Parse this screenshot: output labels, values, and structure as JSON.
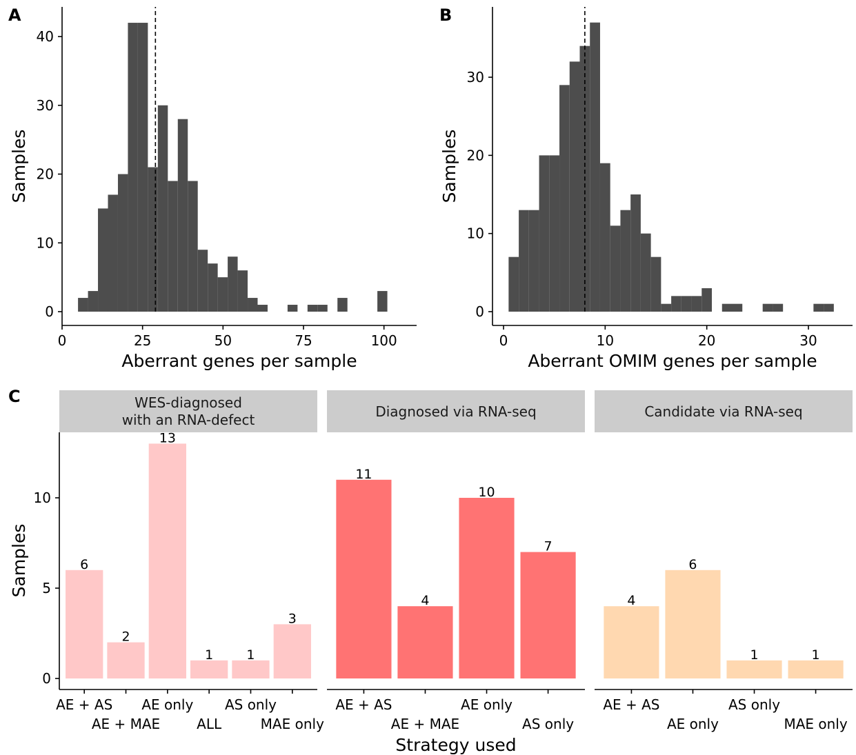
{
  "chart_data": [
    {
      "panel": "A",
      "type": "bar",
      "subtype": "histogram",
      "xlabel": "Aberrant genes per sample",
      "ylabel": "Samples",
      "xlim": [
        0,
        105
      ],
      "ylim": [
        0,
        44
      ],
      "xticks": [
        0,
        25,
        50,
        75,
        100
      ],
      "yticks": [
        0,
        10,
        20,
        30,
        40
      ],
      "bin_width": 3.1,
      "reference_line": {
        "x": 29,
        "style": "dashed"
      },
      "bins": [
        {
          "x": 6.5,
          "count": 2
        },
        {
          "x": 9.6,
          "count": 3
        },
        {
          "x": 12.7,
          "count": 15
        },
        {
          "x": 15.8,
          "count": 17
        },
        {
          "x": 18.9,
          "count": 20
        },
        {
          "x": 22.0,
          "count": 42
        },
        {
          "x": 25.1,
          "count": 42
        },
        {
          "x": 28.2,
          "count": 21
        },
        {
          "x": 31.3,
          "count": 30
        },
        {
          "x": 34.4,
          "count": 19
        },
        {
          "x": 37.5,
          "count": 28
        },
        {
          "x": 40.6,
          "count": 19
        },
        {
          "x": 43.7,
          "count": 9
        },
        {
          "x": 46.8,
          "count": 7
        },
        {
          "x": 49.9,
          "count": 5
        },
        {
          "x": 53.0,
          "count": 8
        },
        {
          "x": 56.1,
          "count": 6
        },
        {
          "x": 59.2,
          "count": 2
        },
        {
          "x": 62.3,
          "count": 1
        },
        {
          "x": 65.4,
          "count": 0
        },
        {
          "x": 71.6,
          "count": 1
        },
        {
          "x": 77.8,
          "count": 1
        },
        {
          "x": 80.9,
          "count": 1
        },
        {
          "x": 87.1,
          "count": 2
        },
        {
          "x": 99.5,
          "count": 3
        }
      ]
    },
    {
      "panel": "B",
      "type": "bar",
      "subtype": "histogram",
      "xlabel": "Aberrant OMIM genes per sample",
      "ylabel": "Samples",
      "xlim": [
        -1,
        33.5
      ],
      "ylim": [
        0,
        38
      ],
      "xticks": [
        0,
        10,
        20,
        30
      ],
      "yticks": [
        0,
        10,
        20,
        30
      ],
      "bin_width": 1,
      "reference_line": {
        "x": 8,
        "style": "dashed"
      },
      "bins": [
        {
          "x": 1,
          "count": 7
        },
        {
          "x": 2,
          "count": 13
        },
        {
          "x": 3,
          "count": 13
        },
        {
          "x": 4,
          "count": 20
        },
        {
          "x": 5,
          "count": 20
        },
        {
          "x": 6,
          "count": 29
        },
        {
          "x": 7,
          "count": 32
        },
        {
          "x": 8,
          "count": 34
        },
        {
          "x": 9,
          "count": 37
        },
        {
          "x": 10,
          "count": 19
        },
        {
          "x": 11,
          "count": 11
        },
        {
          "x": 12,
          "count": 13
        },
        {
          "x": 13,
          "count": 15
        },
        {
          "x": 14,
          "count": 10
        },
        {
          "x": 15,
          "count": 7
        },
        {
          "x": 16,
          "count": 1
        },
        {
          "x": 17,
          "count": 2
        },
        {
          "x": 18,
          "count": 2
        },
        {
          "x": 19,
          "count": 2
        },
        {
          "x": 20,
          "count": 3
        },
        {
          "x": 22,
          "count": 1
        },
        {
          "x": 23,
          "count": 1
        },
        {
          "x": 26,
          "count": 1
        },
        {
          "x": 27,
          "count": 1
        },
        {
          "x": 31,
          "count": 1
        },
        {
          "x": 32,
          "count": 1
        }
      ]
    },
    {
      "panel": "C",
      "type": "bar",
      "subtype": "faceted",
      "xlabel": "Strategy used",
      "ylabel": "Samples",
      "ylim": [
        -0.65,
        13.7
      ],
      "yticks": [
        0,
        5,
        10
      ],
      "facets": [
        {
          "title": [
            "WES-diagnosed",
            "with an RNA-defect"
          ],
          "color": "#ffc8c8",
          "categories": [
            "AE + AS",
            "AE + MAE",
            "AE only",
            "ALL",
            "AS only",
            "MAE only"
          ],
          "values": [
            6,
            2,
            13,
            1,
            1,
            3
          ]
        },
        {
          "title": [
            "Diagnosed via RNA-seq"
          ],
          "color": "#ff7373",
          "categories": [
            "AE + AS",
            "AE + MAE",
            "AE only",
            "AS only"
          ],
          "values": [
            11,
            4,
            10,
            7
          ]
        },
        {
          "title": [
            "Candidate via RNA-seq"
          ],
          "color": "#ffd8b0",
          "categories": [
            "AE + AS",
            "AE only",
            "AS only",
            "MAE only"
          ],
          "values": [
            4,
            6,
            1,
            1
          ]
        }
      ]
    }
  ],
  "colors": {
    "histogram_fill": "#4d4d4d",
    "facet_strip": "#cccccc"
  }
}
